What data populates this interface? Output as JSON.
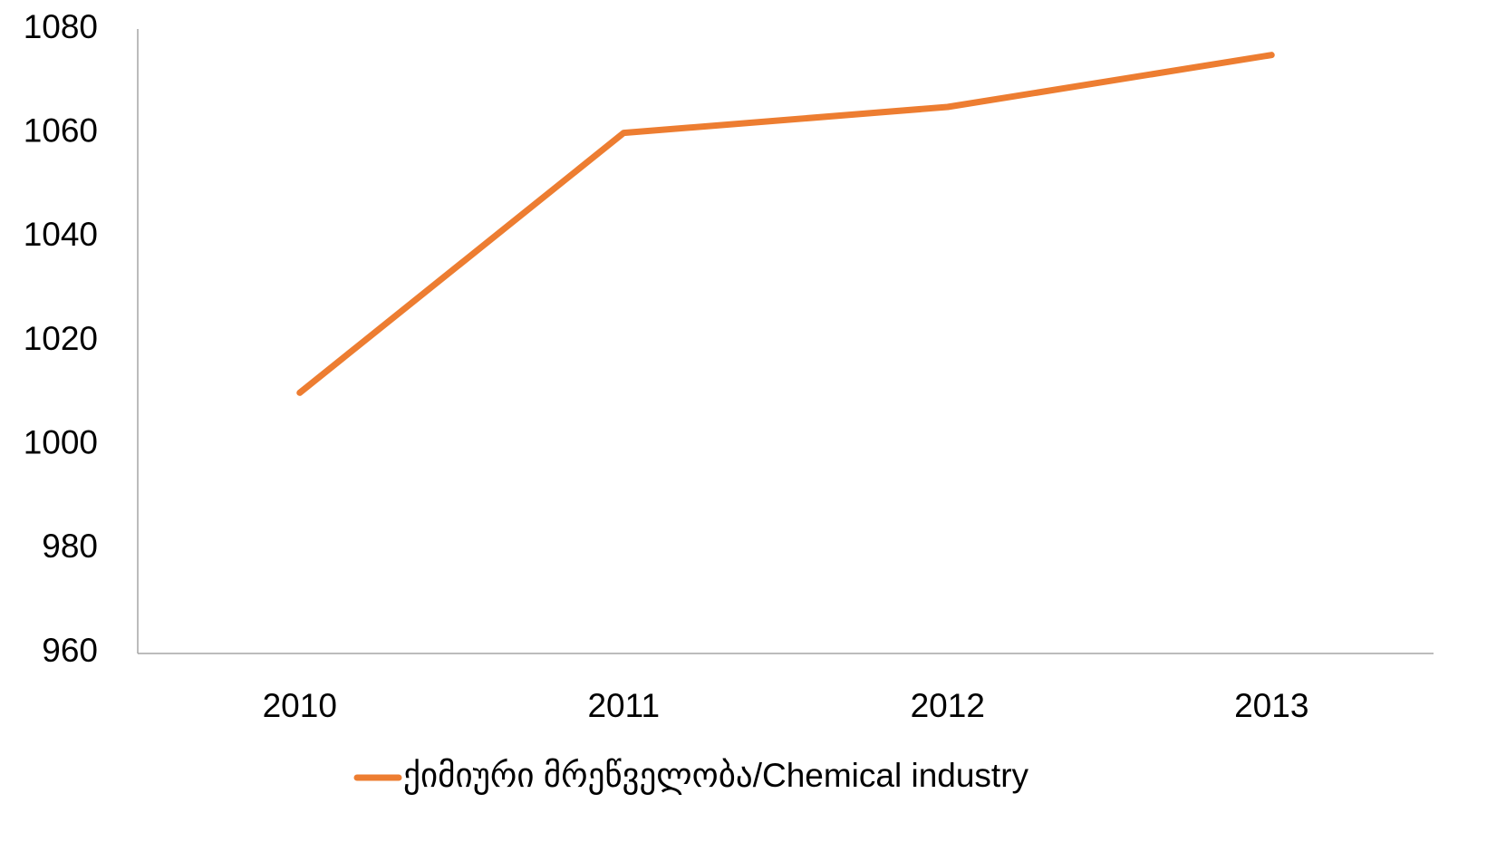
{
  "chart_data": {
    "type": "line",
    "categories": [
      "2010",
      "2011",
      "2012",
      "2013"
    ],
    "series": [
      {
        "name": "ქიმიური მრეწველობა/Chemical industry",
        "color": "#ed7d31",
        "values": [
          1010,
          1060,
          1065,
          1075
        ]
      }
    ],
    "ylim": [
      960,
      1080
    ],
    "yticks": [
      960,
      980,
      1000,
      1020,
      1040,
      1060,
      1080
    ],
    "grid": false,
    "legend": "bottom"
  }
}
